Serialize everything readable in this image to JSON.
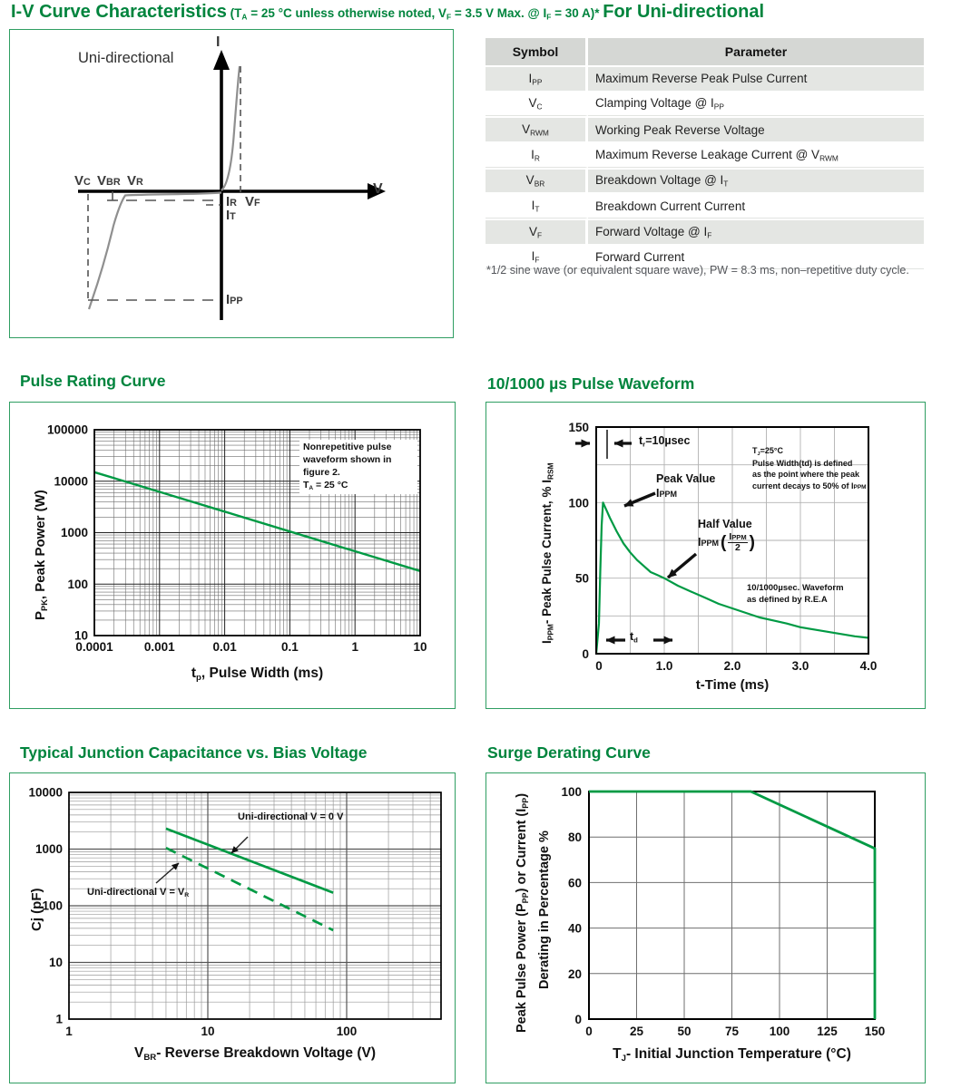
{
  "page": {
    "title_main": "I-V Curve Characteristics",
    "title_condition": " (T~A~ = 25 °C unless otherwise noted, V~F~ = 3.5 V Max. @ I~F~ = 30 A)* ",
    "title_suffix": "For Uni-directional"
  },
  "colors": {
    "heading_green": "#00843D",
    "curve_green": "#009A44",
    "box_border_green": "#2f9e62",
    "curve_gray": "#8f8f8f",
    "grid_gray": "#9a9a9a"
  },
  "iv_diagram": {
    "label": "Uni-directional",
    "axis_y": "I",
    "axis_x": "V",
    "labels": {
      "vc": "V`C`",
      "vbr": "V`BR`",
      "vr": "V`R`",
      "ir": "I`R`",
      "vf": "V`F`",
      "it": "I`T`",
      "ipp": "I`PP`"
    }
  },
  "symbol_table": {
    "headers": [
      "Symbol",
      "Parameter"
    ],
    "rows": [
      {
        "symbol": "I~PP~",
        "parameter": "Maximum Reverse Peak Pulse Current"
      },
      {
        "symbol": "V~C~",
        "parameter": "Clamping Voltage @ I~PP~"
      },
      {
        "symbol": "V~RWM~",
        "parameter": "Working Peak Reverse Voltage"
      },
      {
        "symbol": "I~R~",
        "parameter": "Maximum Reverse Leakage Current @ V~RWM~"
      },
      {
        "symbol": "V~BR~",
        "parameter": "Breakdown Voltage @ I~T~"
      },
      {
        "symbol": "I~T~",
        "parameter": "Breakdown Current Current"
      },
      {
        "symbol": "V~F~",
        "parameter": "Forward Voltage @ I~F~"
      },
      {
        "symbol": "I~F~",
        "parameter": "Forward Current"
      }
    ],
    "footnote": "*1/2 sine wave (or equivalent square wave), PW = 8.3 ms, non–repetitive duty cycle."
  },
  "sections": {
    "pulse_rating": "Pulse Rating Curve",
    "pulse_waveform": "10/1000 µs Pulse Waveform",
    "junction_capacitance": "Typical Junction Capacitance vs. Bias Voltage",
    "surge_derating": "Surge Derating Curve"
  },
  "chart_data": [
    {
      "id": "pulse_rating",
      "type": "line",
      "title": "Pulse Rating Curve",
      "x_scale": "log",
      "y_scale": "log",
      "xlabel": "t~p~, Pulse Width (ms)",
      "ylabel": "P~PK~, Peak Power (W)",
      "xlim": [
        0.0001,
        10
      ],
      "ylim": [
        10,
        100000
      ],
      "x_ticks": [
        "0.0001",
        "0.001",
        "0.01",
        "0.1",
        "1",
        "10"
      ],
      "y_ticks": [
        "100000",
        "10000",
        "1000",
        "100",
        "10"
      ],
      "grid": "log-log minor gridlines on",
      "series": [
        {
          "name": "Peak Power vs Pulse Width",
          "style": "solid",
          "points": [
            [
              0.0001,
              15000
            ],
            [
              0.001,
              6200
            ],
            [
              0.01,
              2560
            ],
            [
              0.1,
              1055
            ],
            [
              1,
              436
            ],
            [
              10,
              180
            ]
          ]
        }
      ],
      "note": "Nonrepetitive pulse\nwaveform shown in\nfigure 2.\nT~A~ = 25 °C"
    },
    {
      "id": "pulse_waveform",
      "type": "line",
      "title": "10/1000 µs Pulse Waveform",
      "xlabel": "t-Time (ms)",
      "ylabel": "I~PPM~- Peak Pulse Current, % I~RSM~",
      "xlim": [
        0,
        4
      ],
      "ylim": [
        0,
        150
      ],
      "x_ticks": [
        "0",
        "1.0",
        "2.0",
        "3.0",
        "4.0"
      ],
      "y_ticks": [
        "150",
        "100",
        "50",
        "0"
      ],
      "grid": "0.5 ms vertical, 25% horizontal",
      "series": [
        {
          "name": "10/1000µs pulse",
          "style": "solid",
          "points": [
            [
              0,
              0
            ],
            [
              0.04,
              20
            ],
            [
              0.06,
              55
            ],
            [
              0.08,
              85
            ],
            [
              0.1,
              100
            ],
            [
              0.15,
              95
            ],
            [
              0.2,
              90
            ],
            [
              0.3,
              81
            ],
            [
              0.4,
              73
            ],
            [
              0.5,
              67
            ],
            [
              0.6,
              62
            ],
            [
              0.7,
              58
            ],
            [
              0.8,
              54
            ],
            [
              0.9,
              52
            ],
            [
              1,
              50
            ],
            [
              1.2,
              45
            ],
            [
              1.4,
              41
            ],
            [
              1.6,
              37
            ],
            [
              1.8,
              33
            ],
            [
              2,
              30
            ],
            [
              2.2,
              27
            ],
            [
              2.4,
              24
            ],
            [
              2.6,
              22
            ],
            [
              2.8,
              20
            ],
            [
              3,
              17.5
            ],
            [
              3.2,
              16
            ],
            [
              3.4,
              14.5
            ],
            [
              3.6,
              13
            ],
            [
              3.8,
              11.5
            ],
            [
              4,
              10.5
            ]
          ]
        }
      ],
      "annotations": {
        "tr": "t~r~=10µsec",
        "tj_note": "T~J~=25°C\nPulse Width(td) is defined\nas the point where the peak\ncurrent decays to 50% of I`PPM`",
        "peak_value": "Peak Value\nI`PPM`",
        "half_value": "Half Value",
        "half_sym": "I`PPM`",
        "half_frac_top": "I`PPM`",
        "half_frac_bot": "2",
        "rea_note": "10/1000µsec. Waveform\nas defined by R.E.A",
        "td": "t~d~"
      }
    },
    {
      "id": "junction_capacitance",
      "type": "line",
      "title": "Typical Junction Capacitance vs. Bias Voltage",
      "x_scale": "log",
      "y_scale": "log",
      "xlabel": "V~BR~- Reverse Breakdown Voltage (V)",
      "ylabel": "Cj (pF)",
      "xlim": [
        1,
        500
      ],
      "ylim": [
        1,
        10000
      ],
      "x_ticks": [
        "1",
        "10",
        "100"
      ],
      "y_ticks": [
        "10000",
        "1000",
        "100",
        "10",
        "1"
      ],
      "grid": "log-log minor gridlines on",
      "series": [
        {
          "name": "Uni-directional V = 0 V",
          "style": "solid",
          "points": [
            [
              5,
              2300
            ],
            [
              80,
              170
            ]
          ]
        },
        {
          "name": "Uni-directional V = V~R~",
          "style": "dashed",
          "points": [
            [
              5,
              1050
            ],
            [
              80,
              37
            ]
          ]
        }
      ]
    },
    {
      "id": "surge_derating",
      "type": "line",
      "title": "Surge Derating Curve",
      "xlabel": "T~J~- Initial Junction Temperature (°C)",
      "ylabel_line1": "Peak Pulse Power (P~PP~) or Current (I~PP~)",
      "ylabel_line2": "Derating in Percentage %",
      "xlim": [
        0,
        150
      ],
      "ylim": [
        0,
        100
      ],
      "x_ticks": [
        "0",
        "25",
        "50",
        "75",
        "100",
        "125",
        "150"
      ],
      "y_ticks": [
        "100",
        "80",
        "60",
        "40",
        "20",
        "0"
      ],
      "grid": "25 °C vertical, 20% horizontal",
      "series": [
        {
          "name": "Derating %",
          "style": "solid",
          "points": [
            [
              0,
              100
            ],
            [
              85,
              100
            ],
            [
              150,
              75
            ],
            [
              150,
              0
            ]
          ]
        }
      ]
    }
  ]
}
